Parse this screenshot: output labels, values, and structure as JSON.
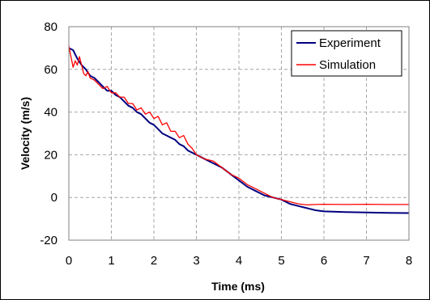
{
  "chart_data": {
    "type": "line",
    "xlabel": "Time (ms)",
    "ylabel": "Velocity (m/s)",
    "xlim": [
      0,
      8
    ],
    "ylim": [
      -20,
      80
    ],
    "xticks": [
      "0",
      "1",
      "2",
      "3",
      "4",
      "5",
      "6",
      "7",
      "8"
    ],
    "yticks": [
      "80",
      "60",
      "40",
      "20",
      "0",
      "-20"
    ],
    "grid": true,
    "legend_position": "top-right",
    "series": [
      {
        "name": "Experiment",
        "color": "#000080",
        "x": [
          0,
          0.1,
          0.2,
          0.3,
          0.4,
          0.5,
          0.6,
          0.7,
          0.8,
          0.9,
          1.0,
          1.1,
          1.2,
          1.3,
          1.4,
          1.5,
          1.6,
          1.7,
          1.8,
          1.9,
          2.0,
          2.1,
          2.2,
          2.3,
          2.4,
          2.5,
          2.6,
          2.7,
          2.8,
          2.9,
          3.0,
          3.2,
          3.4,
          3.6,
          3.8,
          4.0,
          4.2,
          4.4,
          4.6,
          4.8,
          5.0,
          5.2,
          5.4,
          5.6,
          5.8,
          6.0,
          6.5,
          7.0,
          7.5,
          8.0
        ],
        "y": [
          70,
          69,
          65,
          62,
          60,
          57,
          56,
          54,
          52,
          50,
          50,
          48,
          47,
          45,
          43,
          42,
          40,
          39,
          37,
          35,
          34,
          32,
          30,
          29,
          28,
          27,
          25,
          24,
          22,
          21,
          20,
          18,
          16,
          14,
          11,
          8,
          5,
          3,
          1,
          0,
          -1,
          -3,
          -4,
          -5,
          -6,
          -6.5,
          -6.8,
          -7,
          -7.2,
          -7.3
        ]
      },
      {
        "name": "Simulation",
        "color": "#ff0000",
        "x": [
          0,
          0.05,
          0.1,
          0.15,
          0.2,
          0.25,
          0.3,
          0.35,
          0.4,
          0.45,
          0.5,
          0.6,
          0.7,
          0.8,
          0.9,
          1.0,
          1.1,
          1.2,
          1.3,
          1.4,
          1.5,
          1.6,
          1.7,
          1.8,
          1.9,
          2.0,
          2.1,
          2.2,
          2.3,
          2.4,
          2.5,
          2.6,
          2.7,
          2.8,
          2.9,
          3.0,
          3.2,
          3.4,
          3.6,
          3.8,
          4.0,
          4.2,
          4.4,
          4.6,
          4.8,
          5.0,
          5.2,
          5.4,
          5.6,
          5.8,
          6.0,
          6.5,
          7.0,
          7.5,
          8.0
        ],
        "y": [
          71,
          66,
          61,
          64,
          62,
          66,
          62,
          58,
          57,
          59,
          56,
          55,
          53,
          51,
          52,
          49,
          49,
          47,
          47,
          44,
          44,
          41,
          42,
          39,
          40,
          37,
          38,
          34,
          35,
          31,
          31,
          28,
          29,
          25,
          23,
          20,
          18,
          17,
          14,
          11,
          9,
          6,
          4,
          2,
          0,
          -1,
          -2,
          -3,
          -3.5,
          -3.3,
          -3.2,
          -3.3,
          -3.2,
          -3.3,
          -3.3
        ]
      }
    ]
  }
}
